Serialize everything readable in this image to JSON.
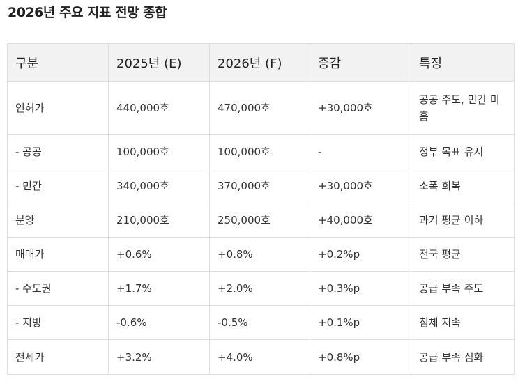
{
  "page": {
    "title": "2026년 주요 지표 전망 종합"
  },
  "table": {
    "headers": [
      "구분",
      "2025년 (E)",
      "2026년 (F)",
      "증감",
      "특징"
    ],
    "rows": [
      [
        "인허가",
        "440,000호",
        "470,000호",
        "+30,000호",
        "공공 주도, 민간 미흡"
      ],
      [
        "- 공공",
        "100,000호",
        "100,000호",
        "-",
        "정부 목표 유지"
      ],
      [
        "- 민간",
        "340,000호",
        "370,000호",
        "+30,000호",
        "소폭 회복"
      ],
      [
        "분양",
        "210,000호",
        "250,000호",
        "+40,000호",
        "과거 평균 이하"
      ],
      [
        "매매가",
        "+0.6%",
        "+0.8%",
        "+0.2%p",
        "전국 평균"
      ],
      [
        "- 수도권",
        "+1.7%",
        "+2.0%",
        "+0.3%p",
        "공급 부족 주도"
      ],
      [
        "- 지방",
        "-0.6%",
        "-0.5%",
        "+0.1%p",
        "침체 지속"
      ],
      [
        "전세가",
        "+3.2%",
        "+4.0%",
        "+0.8%p",
        "공급 부족 심화"
      ]
    ]
  }
}
